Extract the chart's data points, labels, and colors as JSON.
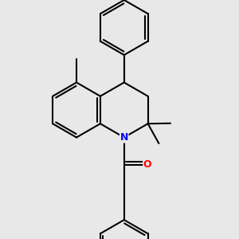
{
  "bg_color": "#e8e8e8",
  "bond_color": "#000000",
  "n_color": "#0000ff",
  "o_color": "#ff0000",
  "line_width": 1.5,
  "dbo": 0.12,
  "figsize": [
    3.0,
    3.0
  ],
  "dpi": 100
}
